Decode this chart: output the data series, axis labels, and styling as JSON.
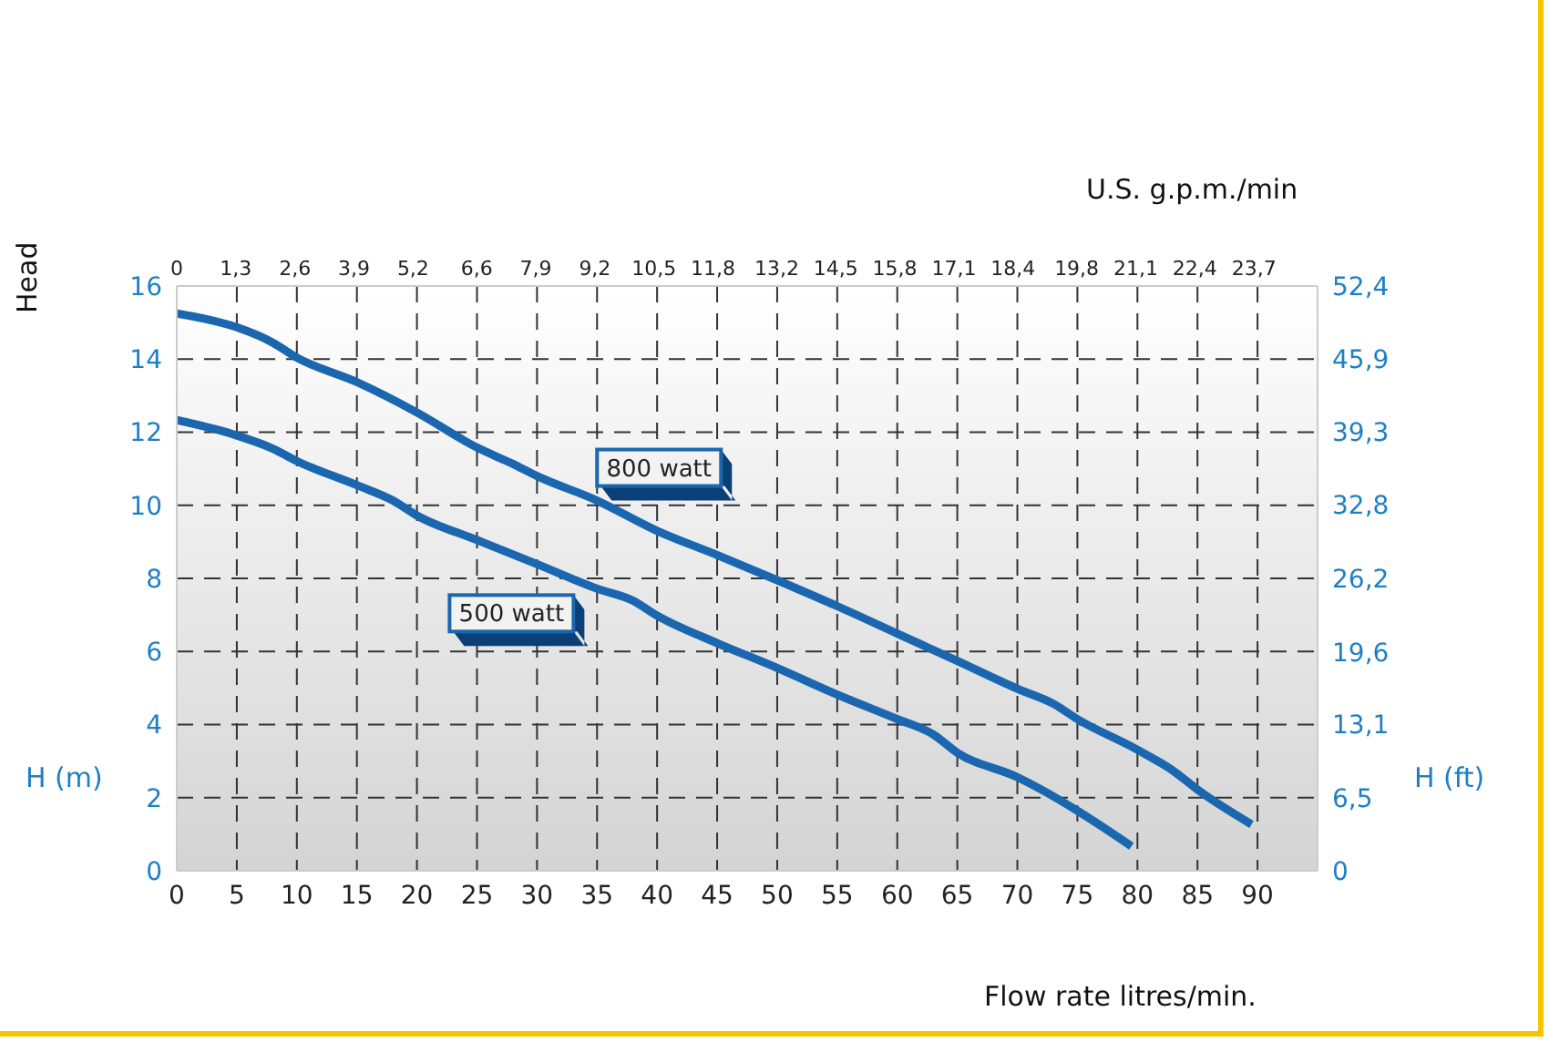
{
  "chart_data": {
    "type": "line",
    "xlabel": "Flow rate litres/min.",
    "ylabel": "H (m)",
    "y2label": "H (ft)",
    "x2label": "U.S. g.p.m./min",
    "annotations": [
      "Head"
    ],
    "series": [
      {
        "name": "800 watt",
        "color": "#1a67b0",
        "x": [
          0,
          5,
          8,
          10,
          15,
          20,
          25,
          28,
          30,
          35,
          40,
          45,
          50,
          55,
          60,
          65,
          70,
          73,
          75,
          80,
          83,
          85,
          89.5
        ],
        "values": [
          15.25,
          14.87,
          14.45,
          14.04,
          13.37,
          12.54,
          11.58,
          11.13,
          10.8,
          10.13,
          9.3,
          8.64,
          7.95,
          7.24,
          6.49,
          5.74,
          4.98,
          4.57,
          4.15,
          3.31,
          2.73,
          2.22,
          1.27
        ]
      },
      {
        "name": "500 watt",
        "color": "#1a67b0",
        "x": [
          0,
          5,
          8,
          10,
          15,
          18,
          20,
          25,
          30,
          35,
          38,
          40,
          45,
          50,
          55,
          60,
          63,
          65,
          70,
          72,
          75,
          79.5
        ],
        "values": [
          12.33,
          11.91,
          11.55,
          11.21,
          10.55,
          10.13,
          9.72,
          9.05,
          8.39,
          7.72,
          7.39,
          6.98,
          6.23,
          5.55,
          4.82,
          4.15,
          3.73,
          3.23,
          2.56,
          2.22,
          1.64,
          0.67
        ]
      }
    ],
    "xlim": [
      0,
      95
    ],
    "xticks": [
      0,
      5,
      10,
      15,
      20,
      25,
      30,
      35,
      40,
      45,
      50,
      55,
      60,
      65,
      70,
      75,
      80,
      85,
      90
    ],
    "ylim": [
      0,
      16
    ],
    "yticks": [
      0,
      2,
      4,
      6,
      8,
      10,
      12,
      14,
      16
    ],
    "x2lim": [
      0,
      25.1
    ],
    "x2ticks": [
      0,
      {
        "value": 1.3,
        "label": "1,3"
      },
      {
        "value": 2.6,
        "label": "2,6"
      },
      {
        "value": 3.9,
        "label": "3,9"
      },
      {
        "value": 5.2,
        "label": "5,2"
      },
      {
        "value": 6.6,
        "label": "6,6"
      },
      {
        "value": 7.9,
        "label": "7,9"
      },
      {
        "value": 9.2,
        "label": "9,2"
      },
      {
        "value": 10.5,
        "label": "10,5"
      },
      {
        "value": 11.8,
        "label": "11,8"
      },
      {
        "value": 13.2,
        "label": "13,2"
      },
      {
        "value": 14.5,
        "label": "14,5"
      },
      {
        "value": 15.8,
        "label": "15,8"
      },
      {
        "value": 17.1,
        "label": "17,1"
      },
      {
        "value": 18.4,
        "label": "18,4"
      },
      {
        "value": 19.8,
        "label": "19,8"
      },
      {
        "value": 21.1,
        "label": "21,1"
      },
      {
        "value": 22.4,
        "label": "22,4"
      },
      {
        "value": 23.7,
        "label": "23,7"
      }
    ],
    "y2lim": [
      0,
      52.4
    ],
    "y2ticks": [
      0,
      {
        "value": 6.5,
        "label": "6,5"
      },
      {
        "value": 13.1,
        "label": "13,1"
      },
      {
        "value": 19.6,
        "label": "19,6"
      },
      {
        "value": 26.2,
        "label": "26,2"
      },
      {
        "value": 32.8,
        "label": "32,8"
      },
      {
        "value": 39.3,
        "label": "39,3"
      },
      {
        "value": 45.9,
        "label": "45,9"
      },
      {
        "value": 52.4,
        "label": "52,4"
      }
    ],
    "grid": true,
    "legend": false,
    "marker": "none",
    "line_style": "solid"
  }
}
